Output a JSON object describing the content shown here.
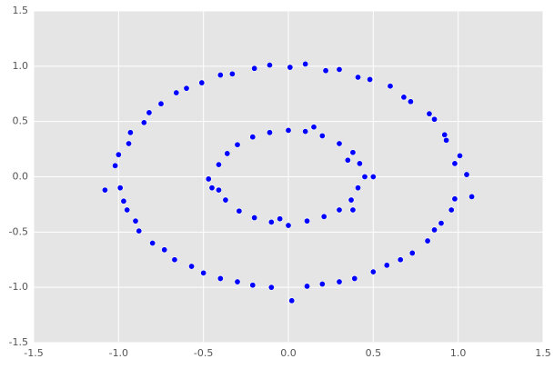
{
  "chart_data": {
    "type": "scatter",
    "x": [
      1.05,
      0.98,
      1.01,
      0.93,
      0.92,
      0.86,
      0.83,
      0.72,
      0.68,
      0.6,
      0.48,
      0.41,
      0.3,
      0.22,
      0.1,
      0.01,
      -0.11,
      -0.2,
      -0.33,
      -0.4,
      -0.51,
      -0.6,
      -0.66,
      -0.75,
      -0.82,
      -0.85,
      -0.93,
      -0.94,
      -1.0,
      -1.02,
      -1.08,
      -0.99,
      -0.97,
      -0.95,
      -0.9,
      -0.88,
      -0.8,
      -0.73,
      -0.67,
      -0.57,
      -0.5,
      -0.4,
      -0.3,
      -0.21,
      -0.1,
      0.02,
      0.11,
      0.2,
      0.3,
      0.39,
      0.5,
      0.58,
      0.66,
      0.73,
      0.82,
      0.86,
      0.9,
      0.96,
      0.98,
      1.08,
      0.45,
      0.42,
      0.38,
      0.3,
      0.2,
      0.1,
      0.0,
      -0.11,
      -0.21,
      -0.3,
      -0.36,
      -0.41,
      -0.47,
      -0.41,
      -0.37,
      -0.29,
      -0.2,
      -0.1,
      0.0,
      0.11,
      0.21,
      0.3,
      0.37,
      0.41,
      0.35,
      0.38,
      -0.45,
      0.15,
      -0.05,
      0.5
    ],
    "y": [
      0.02,
      0.12,
      0.19,
      0.33,
      0.38,
      0.52,
      0.57,
      0.68,
      0.72,
      0.82,
      0.88,
      0.9,
      0.97,
      0.96,
      1.02,
      0.99,
      1.01,
      0.98,
      0.93,
      0.92,
      0.85,
      0.8,
      0.76,
      0.66,
      0.58,
      0.49,
      0.4,
      0.3,
      0.2,
      0.1,
      -0.12,
      -0.1,
      -0.22,
      -0.3,
      -0.4,
      -0.49,
      -0.6,
      -0.66,
      -0.75,
      -0.81,
      -0.87,
      -0.92,
      -0.95,
      -0.98,
      -1.0,
      -1.12,
      -0.99,
      -0.97,
      -0.95,
      -0.92,
      -0.86,
      -0.8,
      -0.75,
      -0.69,
      -0.58,
      -0.48,
      -0.42,
      -0.3,
      -0.2,
      -0.18,
      0.0,
      0.12,
      0.22,
      0.3,
      0.37,
      0.41,
      0.42,
      0.4,
      0.36,
      0.29,
      0.21,
      0.11,
      -0.02,
      -0.12,
      -0.21,
      -0.31,
      -0.37,
      -0.41,
      -0.44,
      -0.4,
      -0.36,
      -0.3,
      -0.21,
      -0.1,
      0.15,
      -0.3,
      -0.1,
      0.45,
      -0.38,
      0.0
    ],
    "color": "#0000ff",
    "xlim": [
      -1.5,
      1.5
    ],
    "ylim": [
      -1.5,
      1.5
    ],
    "xticks": [
      -1.5,
      {
        "value": -1.0,
        "label": "-1.0"
      },
      -0.5,
      {
        "value": 0.0,
        "label": "0.0"
      },
      0.5,
      {
        "value": 1.0,
        "label": "1.0"
      },
      1.5
    ],
    "yticks": [
      -1.5,
      {
        "value": -1.0,
        "label": "-1.0"
      },
      -0.5,
      {
        "value": 0.0,
        "label": "0.0"
      },
      0.5,
      {
        "value": 1.0,
        "label": "1.0"
      },
      1.5
    ],
    "grid": true
  }
}
